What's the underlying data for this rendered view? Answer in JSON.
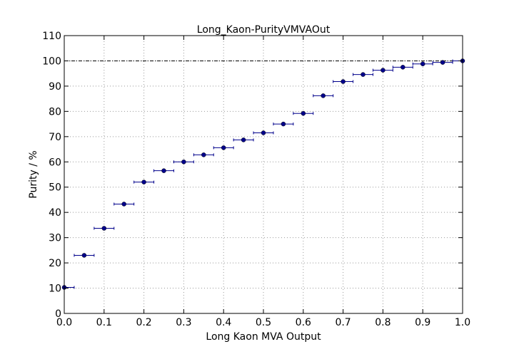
{
  "chart_data": {
    "type": "scatter",
    "title": "Long_Kaon-PurityVMVAOut",
    "xlabel": "Long Kaon MVA Output",
    "ylabel": "Purity / %",
    "xlim": [
      0.0,
      1.0
    ],
    "ylim": [
      0,
      110
    ],
    "xticks": [
      "0.0",
      "0.1",
      "0.2",
      "0.3",
      "0.4",
      "0.5",
      "0.6",
      "0.7",
      "0.8",
      "0.9",
      "1.0"
    ],
    "yticks": [
      "0",
      "10",
      "20",
      "30",
      "40",
      "50",
      "60",
      "70",
      "80",
      "90",
      "100",
      "110"
    ],
    "grid": true,
    "reference_line_y": 100,
    "x_error_half_width": 0.025,
    "x": [
      0.0,
      0.05,
      0.1,
      0.15,
      0.2,
      0.25,
      0.3,
      0.35,
      0.4,
      0.45,
      0.5,
      0.55,
      0.6,
      0.65,
      0.7,
      0.75,
      0.8,
      0.85,
      0.9,
      0.95,
      1.0
    ],
    "y": [
      10.3,
      23.0,
      33.7,
      43.3,
      52.0,
      56.5,
      60.0,
      62.8,
      65.6,
      68.7,
      71.5,
      75.0,
      79.2,
      86.2,
      91.8,
      94.6,
      96.3,
      97.5,
      98.8,
      99.4,
      100.0
    ],
    "colors": {
      "marker": "#00008b",
      "axis": "#000000",
      "grid": "#999999"
    }
  }
}
